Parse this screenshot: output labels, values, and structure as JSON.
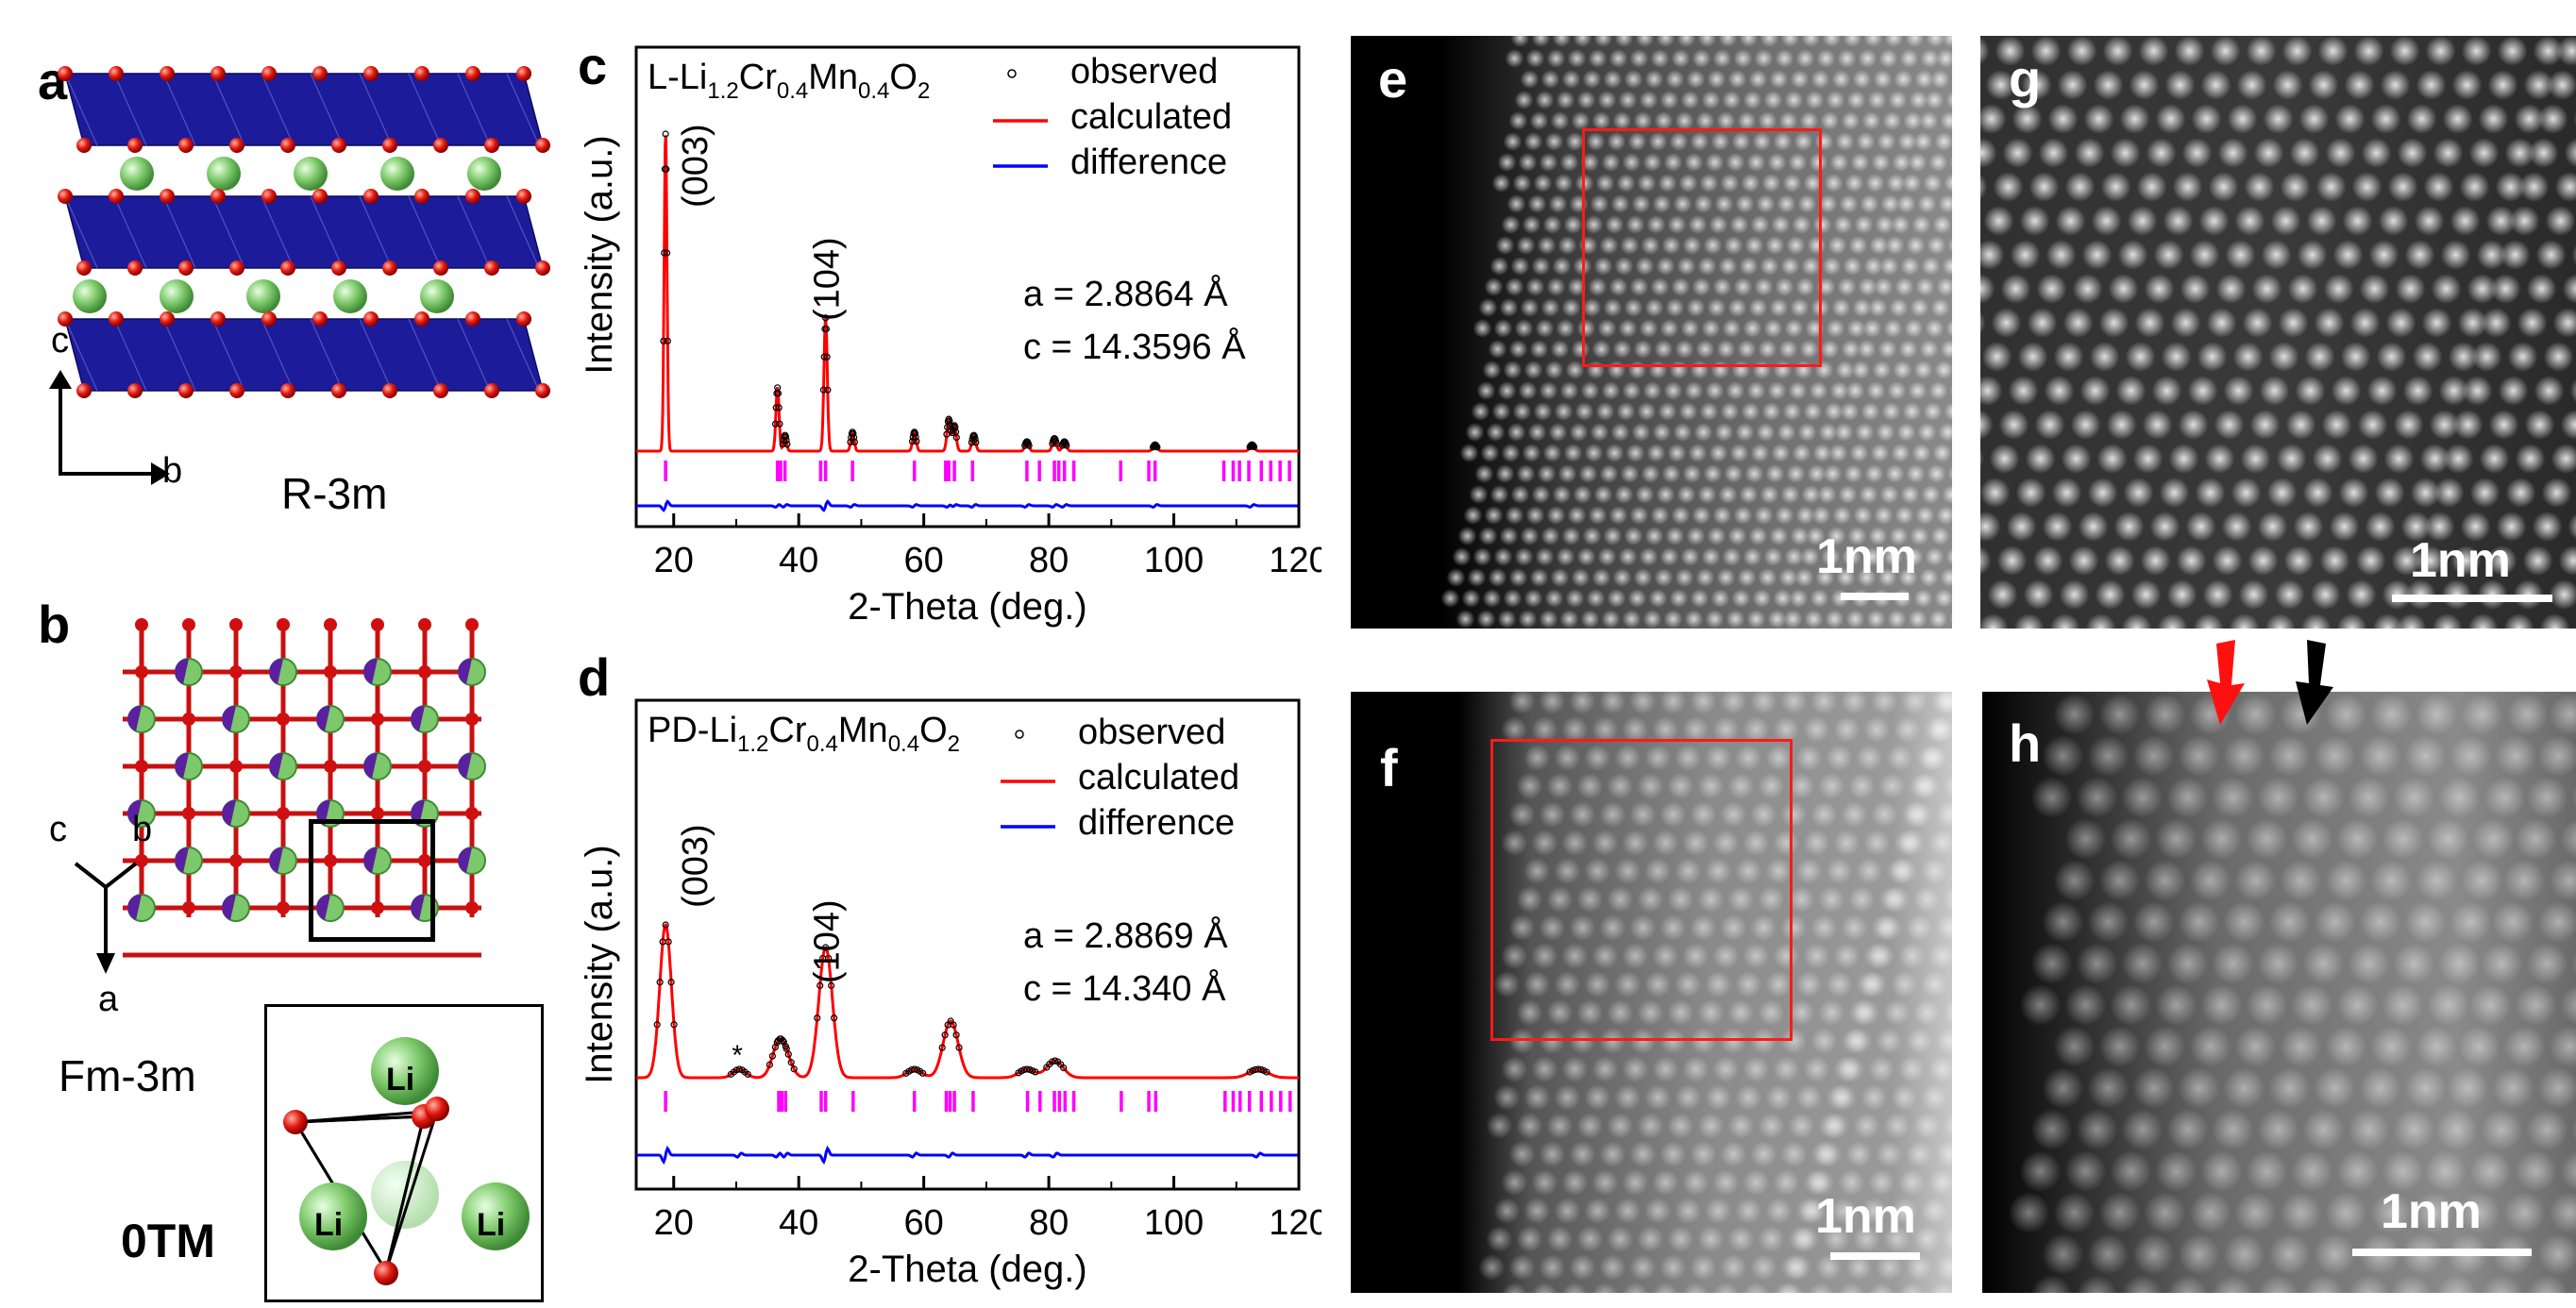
{
  "panels": {
    "a": {
      "label": "a",
      "space_group": "R-3m",
      "axis_c": "c",
      "axis_b": "b"
    },
    "b": {
      "label": "b",
      "space_group": "Fm-3m",
      "axis_c": "c",
      "axis_b": "b",
      "axis_a": "a",
      "inset_atoms": [
        "Li",
        "Li",
        "Li"
      ],
      "inset_caption": "0TM"
    },
    "c": {
      "label": "c"
    },
    "d": {
      "label": "d"
    },
    "e": {
      "label": "e",
      "scale": "1nm"
    },
    "f": {
      "label": "f",
      "scale": "1nm"
    },
    "g": {
      "label": "g",
      "scale": "1nm"
    },
    "h": {
      "label": "h",
      "scale": "1nm"
    }
  },
  "chart_data": [
    {
      "type": "line",
      "panel": "c",
      "title_main": "L-Li",
      "title_sub1": "1.2",
      "title_mid1": "Cr",
      "title_sub2": "0.4",
      "title_mid2": "Mn",
      "title_sub3": "0.4",
      "title_mid3": "O",
      "title_sub4": "2",
      "xlabel": "2-Theta (deg.)",
      "ylabel": "Intensity (a.u.)",
      "xlim": [
        14,
        120
      ],
      "xticks": [
        "20",
        "40",
        "60",
        "80",
        "100",
        "120"
      ],
      "legend": [
        "observed",
        "calculated",
        "difference"
      ],
      "annotations": [
        "(003)",
        "(104)"
      ],
      "lattice_a": "a = 2.8864 Å",
      "lattice_c": "c = 14.3596 Å",
      "peaks": [
        [
          18.7,
          1.0
        ],
        [
          36.6,
          0.2
        ],
        [
          37.8,
          0.05
        ],
        [
          44.3,
          0.42
        ],
        [
          48.6,
          0.06
        ],
        [
          58.5,
          0.06
        ],
        [
          64.0,
          0.1
        ],
        [
          64.9,
          0.08
        ],
        [
          68.0,
          0.05
        ],
        [
          76.5,
          0.03
        ],
        [
          80.9,
          0.04
        ],
        [
          82.5,
          0.03
        ],
        [
          97.0,
          0.02
        ],
        [
          112.5,
          0.02
        ]
      ],
      "tick_marks": [
        18.7,
        36.6,
        37.1,
        37.8,
        43.5,
        44.3,
        48.6,
        58.5,
        63.5,
        64.0,
        64.9,
        67.8,
        76.5,
        78.5,
        80.9,
        81.6,
        82.5,
        84.0,
        91.5,
        96.0,
        97.0,
        108.0,
        109.5,
        110.5,
        112.0,
        114.0,
        115.5,
        117.0,
        118.5
      ],
      "ylim": [
        0,
        1.08
      ],
      "colors": {
        "observed": "#000000",
        "calculated": "#ff0000",
        "difference": "#0000ff",
        "ticks": "#ff00ff"
      }
    },
    {
      "type": "line",
      "panel": "d",
      "title_main": "PD-Li",
      "title_sub1": "1.2",
      "title_mid1": "Cr",
      "title_sub2": "0.4",
      "title_mid2": "Mn",
      "title_sub3": "0.4",
      "title_mid3": "O",
      "title_sub4": "2",
      "xlabel": "2-Theta (deg.)",
      "ylabel": "Intensity (a.u.)",
      "xlim": [
        14,
        120
      ],
      "xticks": [
        "20",
        "40",
        "60",
        "80",
        "100",
        "120"
      ],
      "legend": [
        "observed",
        "calculated",
        "difference"
      ],
      "annotations": [
        "(003)",
        "(104)",
        "*"
      ],
      "lattice_a": "a = 2.8869 Å",
      "lattice_c": "c = 14.340 Å",
      "peaks": [
        [
          18.7,
          0.54
        ],
        [
          30.5,
          0.03
        ],
        [
          36.7,
          0.1
        ],
        [
          37.9,
          0.06
        ],
        [
          44.3,
          0.46
        ],
        [
          58.5,
          0.03
        ],
        [
          64.3,
          0.2
        ],
        [
          76.5,
          0.03
        ],
        [
          81.0,
          0.06
        ],
        [
          113.5,
          0.03
        ]
      ],
      "tick_marks": [
        18.7,
        36.8,
        37.3,
        37.9,
        43.6,
        44.3,
        48.7,
        58.5,
        63.6,
        64.2,
        64.9,
        67.9,
        76.6,
        78.6,
        80.9,
        81.7,
        82.6,
        84.0,
        91.6,
        96.0,
        97.1,
        108.2,
        109.5,
        110.6,
        112.1,
        114.0,
        115.6,
        117.1,
        118.6
      ],
      "ylim": [
        0,
        1.0
      ],
      "colors": {
        "observed": "#000000",
        "calculated": "#ff0000",
        "difference": "#0000ff",
        "ticks": "#ff00ff"
      }
    }
  ]
}
